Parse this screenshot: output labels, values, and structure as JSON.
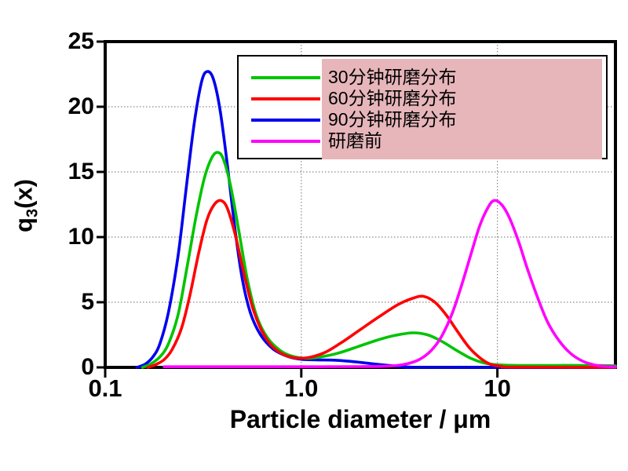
{
  "figure": {
    "x_axis_title": "Particle diameter / μm",
    "y_axis_title_main": "q",
    "y_axis_title_sub": "3",
    "y_axis_title_rest": "(x)",
    "legend_highlight_color": "#e6b6ba",
    "frame_color": "#000000",
    "grid_color": "#8a8a8a",
    "background_color": "#ffffff"
  },
  "chart_data": {
    "type": "line",
    "title": "",
    "xlabel": "Particle diameter / μm",
    "ylabel": "q3(x)",
    "x_scale": "log",
    "xlim": [
      0.1,
      40
    ],
    "ylim": [
      0,
      25
    ],
    "x_ticks": [
      {
        "value": 0.1,
        "label": "0.1"
      },
      {
        "value": 1.0,
        "label": "1.0"
      },
      {
        "value": 10,
        "label": "10"
      }
    ],
    "y_ticks": [
      {
        "value": 0,
        "label": "0"
      },
      {
        "value": 5,
        "label": "5"
      },
      {
        "value": 10,
        "label": "10"
      },
      {
        "value": 15,
        "label": "15"
      },
      {
        "value": 20,
        "label": "20"
      },
      {
        "value": 25,
        "label": "25"
      }
    ],
    "grid": {
      "x_values": [
        1,
        10
      ],
      "y_values": [
        5,
        10,
        15,
        20
      ],
      "style": "dotted"
    },
    "legend_position": "top-right",
    "series": [
      {
        "name": "30分钟研磨分布",
        "color": "#00c400",
        "peaks": [
          {
            "x": 0.37,
            "q": 16.5
          },
          {
            "x": 3.7,
            "q": 2.65
          }
        ],
        "points": [
          [
            0.155,
            0
          ],
          [
            0.17,
            0.25
          ],
          [
            0.19,
            0.8
          ],
          [
            0.21,
            1.8
          ],
          [
            0.235,
            4.0
          ],
          [
            0.26,
            7.5
          ],
          [
            0.29,
            11.5
          ],
          [
            0.32,
            14.5
          ],
          [
            0.35,
            16.1
          ],
          [
            0.375,
            16.5
          ],
          [
            0.4,
            16.0
          ],
          [
            0.435,
            14.0
          ],
          [
            0.48,
            10.5
          ],
          [
            0.53,
            6.8
          ],
          [
            0.59,
            4.0
          ],
          [
            0.67,
            2.3
          ],
          [
            0.78,
            1.3
          ],
          [
            0.9,
            0.85
          ],
          [
            1.05,
            0.7
          ],
          [
            1.25,
            0.8
          ],
          [
            1.55,
            1.1
          ],
          [
            1.95,
            1.6
          ],
          [
            2.45,
            2.1
          ],
          [
            3.0,
            2.45
          ],
          [
            3.7,
            2.65
          ],
          [
            4.4,
            2.5
          ],
          [
            5.2,
            2.0
          ],
          [
            6.2,
            1.3
          ],
          [
            7.3,
            0.7
          ],
          [
            8.5,
            0.35
          ],
          [
            10,
            0.2
          ],
          [
            13,
            0.15
          ],
          [
            20,
            0.15
          ],
          [
            30,
            0.15
          ],
          [
            40,
            0.12
          ]
        ]
      },
      {
        "name": "60分钟研磨分布",
        "color": "#ff0000",
        "peaks": [
          {
            "x": 0.39,
            "q": 12.8
          },
          {
            "x": 4.2,
            "q": 5.45
          }
        ],
        "points": [
          [
            0.165,
            0
          ],
          [
            0.18,
            0.2
          ],
          [
            0.2,
            0.6
          ],
          [
            0.22,
            1.4
          ],
          [
            0.245,
            3.0
          ],
          [
            0.27,
            5.5
          ],
          [
            0.3,
            8.8
          ],
          [
            0.33,
            11.3
          ],
          [
            0.36,
            12.5
          ],
          [
            0.39,
            12.8
          ],
          [
            0.42,
            12.2
          ],
          [
            0.46,
            10.2
          ],
          [
            0.51,
            7.2
          ],
          [
            0.57,
            4.4
          ],
          [
            0.65,
            2.4
          ],
          [
            0.75,
            1.3
          ],
          [
            0.88,
            0.8
          ],
          [
            1.05,
            0.72
          ],
          [
            1.3,
            1.1
          ],
          [
            1.6,
            1.9
          ],
          [
            2.0,
            2.9
          ],
          [
            2.5,
            3.9
          ],
          [
            3.1,
            4.8
          ],
          [
            3.7,
            5.3
          ],
          [
            4.2,
            5.45
          ],
          [
            4.8,
            5.0
          ],
          [
            5.5,
            4.0
          ],
          [
            6.3,
            2.7
          ],
          [
            7.2,
            1.5
          ],
          [
            8.2,
            0.7
          ],
          [
            9.2,
            0.25
          ],
          [
            10.5,
            0.08
          ],
          [
            12,
            0.02
          ],
          [
            40,
            0
          ]
        ]
      },
      {
        "name": "90分钟研磨分布",
        "color": "#0000ee",
        "peaks": [
          {
            "x": 0.33,
            "q": 22.7
          }
        ],
        "points": [
          [
            0.145,
            0
          ],
          [
            0.16,
            0.25
          ],
          [
            0.175,
            0.8
          ],
          [
            0.19,
            1.8
          ],
          [
            0.21,
            4.2
          ],
          [
            0.235,
            8.5
          ],
          [
            0.26,
            14.0
          ],
          [
            0.285,
            18.8
          ],
          [
            0.31,
            21.9
          ],
          [
            0.33,
            22.7
          ],
          [
            0.355,
            22.2
          ],
          [
            0.385,
            19.8
          ],
          [
            0.42,
            15.5
          ],
          [
            0.46,
            10.5
          ],
          [
            0.5,
            6.8
          ],
          [
            0.55,
            4.2
          ],
          [
            0.62,
            2.5
          ],
          [
            0.72,
            1.4
          ],
          [
            0.85,
            0.85
          ],
          [
            1.0,
            0.62
          ],
          [
            1.2,
            0.58
          ],
          [
            1.5,
            0.55
          ],
          [
            1.9,
            0.42
          ],
          [
            2.4,
            0.25
          ],
          [
            3.0,
            0.1
          ],
          [
            3.6,
            0.02
          ],
          [
            4.2,
            0
          ],
          [
            40,
            0
          ]
        ]
      },
      {
        "name": "研磨前",
        "color": "#ff00ff",
        "peaks": [
          {
            "x": 9.6,
            "q": 12.8
          }
        ],
        "points": [
          [
            0.2,
            0.05
          ],
          [
            0.5,
            0.05
          ],
          [
            1.0,
            0.05
          ],
          [
            2.0,
            0.06
          ],
          [
            2.8,
            0.1
          ],
          [
            3.4,
            0.25
          ],
          [
            4.0,
            0.6
          ],
          [
            4.6,
            1.3
          ],
          [
            5.2,
            2.4
          ],
          [
            5.9,
            4.2
          ],
          [
            6.6,
            6.4
          ],
          [
            7.3,
            8.6
          ],
          [
            8.1,
            10.8
          ],
          [
            8.9,
            12.2
          ],
          [
            9.6,
            12.8
          ],
          [
            10.5,
            12.5
          ],
          [
            11.5,
            11.5
          ],
          [
            12.8,
            9.7
          ],
          [
            14.2,
            7.6
          ],
          [
            16,
            5.4
          ],
          [
            18,
            3.5
          ],
          [
            20.5,
            2.1
          ],
          [
            23.5,
            1.1
          ],
          [
            27,
            0.5
          ],
          [
            31,
            0.2
          ],
          [
            35,
            0.08
          ],
          [
            40,
            0.04
          ]
        ]
      }
    ]
  }
}
